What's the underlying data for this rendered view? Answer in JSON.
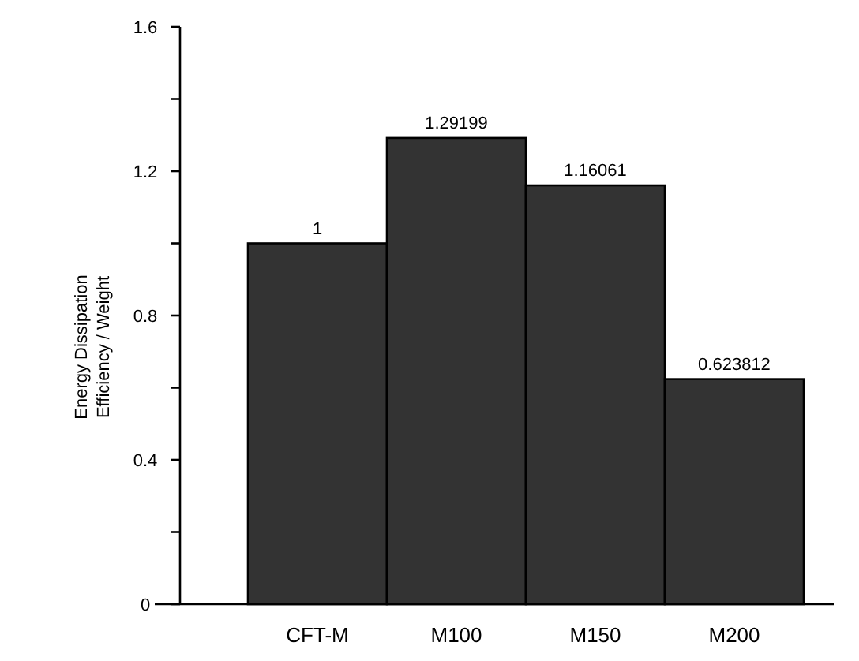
{
  "chart_data": {
    "type": "bar",
    "ylabel": "Energy Dissipation\nEfficiency / Weight",
    "categories": [
      "CFT-M",
      "M100",
      "M150",
      "M200"
    ],
    "values": [
      1,
      1.29199,
      1.16061,
      0.623812
    ],
    "value_labels": [
      "1",
      "1.29199",
      "1.16061",
      "0.623812"
    ],
    "color": "#333333",
    "ylim": [
      0,
      1.6
    ],
    "yticks": [
      0,
      {
        "value": 0.2,
        "label": null
      },
      0.4,
      {
        "value": 0.6,
        "label": null
      },
      0.8,
      {
        "value": 1.0,
        "label": null
      },
      1.2,
      {
        "value": 1.4,
        "label": null
      },
      1.6
    ],
    "grid": false
  }
}
